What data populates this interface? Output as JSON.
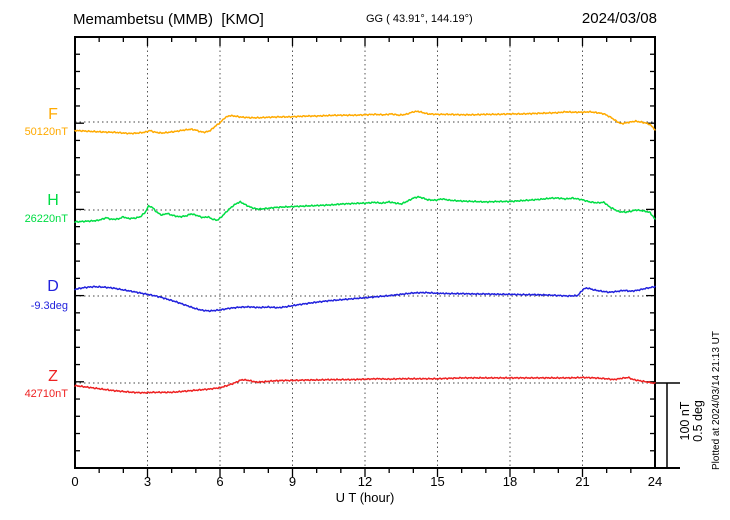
{
  "header": {
    "station_title": "Memambetsu (MMB)  [KMO]",
    "coords": "GG ( 43.91°, 144.19°)",
    "date": "2024/03/08"
  },
  "side": {
    "scale_label_line1": "100 nT",
    "scale_label_line2": "0.5 deg",
    "plotted_at": "Plotted at 2024/03/14 21:13 UT"
  },
  "chart_data": {
    "type": "line",
    "title": "Memambetsu (MMB) [KMO] magnetogram for 2024/03/08",
    "xlabel": "U T (hour)",
    "xlim": [
      0,
      24
    ],
    "x_ticks_major": [
      0,
      3,
      6,
      9,
      12,
      15,
      18,
      21,
      24
    ],
    "x_minor_step_hours": 1,
    "grid": "dotted vertical gridlines every 3 hours; dotted horizontal baseline per trace",
    "legend_position": "left margin labels",
    "scale_bar": {
      "nT": 100,
      "deg": 0.5
    },
    "series": [
      {
        "name": "F",
        "unit": "nT",
        "baseline_value": 50120,
        "baseline_label": "50120nT",
        "color": "#ffaa00",
        "points": [
          [
            0,
            -10
          ],
          [
            0.3,
            -10.5
          ],
          [
            0.6,
            -11
          ],
          [
            1,
            -11.5
          ],
          [
            1.3,
            -12
          ],
          [
            1.6,
            -12
          ],
          [
            2,
            -13
          ],
          [
            2.3,
            -13.5
          ],
          [
            2.6,
            -13
          ],
          [
            2.9,
            -12
          ],
          [
            3.1,
            -10
          ],
          [
            3.3,
            -12
          ],
          [
            3.6,
            -13
          ],
          [
            3.9,
            -12
          ],
          [
            4.2,
            -11
          ],
          [
            4.5,
            -9.5
          ],
          [
            4.8,
            -8.5
          ],
          [
            5,
            -9.5
          ],
          [
            5.2,
            -11.5
          ],
          [
            5.4,
            -12
          ],
          [
            5.6,
            -10
          ],
          [
            5.8,
            -5
          ],
          [
            6,
            -1
          ],
          [
            6.2,
            5
          ],
          [
            6.4,
            7.5
          ],
          [
            6.6,
            7
          ],
          [
            6.8,
            6
          ],
          [
            7,
            5.5
          ],
          [
            7.3,
            5
          ],
          [
            7.6,
            5
          ],
          [
            8,
            5.5
          ],
          [
            8.4,
            6
          ],
          [
            8.8,
            6
          ],
          [
            9.2,
            6.5
          ],
          [
            9.6,
            7
          ],
          [
            10,
            7
          ],
          [
            10.4,
            7.5
          ],
          [
            10.8,
            8
          ],
          [
            11.2,
            8
          ],
          [
            11.6,
            8
          ],
          [
            12,
            8.5
          ],
          [
            12.4,
            9
          ],
          [
            12.8,
            8.5
          ],
          [
            13.1,
            9.5
          ],
          [
            13.4,
            8
          ],
          [
            13.7,
            9
          ],
          [
            14,
            12
          ],
          [
            14.2,
            12.5
          ],
          [
            14.4,
            11
          ],
          [
            14.6,
            9.5
          ],
          [
            15,
            9
          ],
          [
            15.5,
            9
          ],
          [
            16,
            8.5
          ],
          [
            16.5,
            8.5
          ],
          [
            17,
            9
          ],
          [
            17.5,
            9
          ],
          [
            18,
            9.5
          ],
          [
            18.5,
            9.5
          ],
          [
            19,
            10
          ],
          [
            19.5,
            10.5
          ],
          [
            20,
            11
          ],
          [
            20.3,
            12
          ],
          [
            20.6,
            11.5
          ],
          [
            21,
            11.5
          ],
          [
            21.3,
            12
          ],
          [
            21.6,
            11
          ],
          [
            21.9,
            9.5
          ],
          [
            22.2,
            5
          ],
          [
            22.4,
            1
          ],
          [
            22.6,
            -2
          ],
          [
            22.8,
            -1
          ],
          [
            23,
            0
          ],
          [
            23.2,
            1
          ],
          [
            23.4,
            0
          ],
          [
            23.6,
            -1
          ],
          [
            23.8,
            -3
          ],
          [
            24,
            -9
          ]
        ]
      },
      {
        "name": "H",
        "unit": "nT",
        "baseline_value": 26220,
        "baseline_label": "26220nT",
        "color": "#00dd44",
        "points": [
          [
            0,
            -14
          ],
          [
            0.3,
            -13.5
          ],
          [
            0.6,
            -13
          ],
          [
            0.9,
            -12.5
          ],
          [
            1.1,
            -11
          ],
          [
            1.3,
            -9
          ],
          [
            1.5,
            -11
          ],
          [
            1.8,
            -10.5
          ],
          [
            2,
            -8
          ],
          [
            2.2,
            -10
          ],
          [
            2.5,
            -9.5
          ],
          [
            2.7,
            -8
          ],
          [
            2.9,
            -3
          ],
          [
            3.05,
            5
          ],
          [
            3.2,
            3
          ],
          [
            3.4,
            -3
          ],
          [
            3.6,
            -6
          ],
          [
            3.8,
            -4
          ],
          [
            4,
            -6
          ],
          [
            4.3,
            -8
          ],
          [
            4.6,
            -7
          ],
          [
            4.8,
            -4.5
          ],
          [
            5,
            -6
          ],
          [
            5.3,
            -9
          ],
          [
            5.5,
            -8
          ],
          [
            5.7,
            -11
          ],
          [
            5.9,
            -12
          ],
          [
            6.1,
            -7
          ],
          [
            6.3,
            -1
          ],
          [
            6.5,
            4
          ],
          [
            6.7,
            8
          ],
          [
            6.85,
            9.5
          ],
          [
            7,
            7
          ],
          [
            7.2,
            4
          ],
          [
            7.4,
            2
          ],
          [
            7.6,
            1
          ],
          [
            7.8,
            1.5
          ],
          [
            8,
            2
          ],
          [
            8.3,
            3
          ],
          [
            8.6,
            3.5
          ],
          [
            9,
            4
          ],
          [
            9.4,
            4.5
          ],
          [
            9.8,
            5
          ],
          [
            10.2,
            5.5
          ],
          [
            10.6,
            6
          ],
          [
            11,
            7
          ],
          [
            11.4,
            7.5
          ],
          [
            11.8,
            8
          ],
          [
            12,
            8
          ],
          [
            12.4,
            9
          ],
          [
            12.7,
            8
          ],
          [
            13,
            9.5
          ],
          [
            13.3,
            8
          ],
          [
            13.5,
            7
          ],
          [
            13.8,
            11
          ],
          [
            14,
            14
          ],
          [
            14.2,
            15.5
          ],
          [
            14.4,
            14
          ],
          [
            14.6,
            12
          ],
          [
            14.9,
            11.5
          ],
          [
            15.2,
            13
          ],
          [
            15.5,
            11.5
          ],
          [
            16,
            10.5
          ],
          [
            16.5,
            10
          ],
          [
            17,
            9.5
          ],
          [
            17.5,
            10
          ],
          [
            18,
            10
          ],
          [
            18.5,
            11
          ],
          [
            19,
            12
          ],
          [
            19.4,
            13
          ],
          [
            19.7,
            14
          ],
          [
            20,
            14
          ],
          [
            20.3,
            13
          ],
          [
            20.6,
            14
          ],
          [
            21,
            12
          ],
          [
            21.3,
            9.5
          ],
          [
            21.6,
            8.5
          ],
          [
            21.9,
            9
          ],
          [
            22.1,
            4
          ],
          [
            22.3,
            1
          ],
          [
            22.5,
            -2
          ],
          [
            22.8,
            -2.5
          ],
          [
            23,
            -1.5
          ],
          [
            23.2,
            0
          ],
          [
            23.4,
            -0.5
          ],
          [
            23.6,
            -1.5
          ],
          [
            23.8,
            -3
          ],
          [
            24,
            -11
          ]
        ]
      },
      {
        "name": "D",
        "unit": "deg",
        "baseline_value": -9.3,
        "baseline_label": "-9.3deg",
        "color": "#2222dd",
        "points": [
          [
            0,
            0.04
          ],
          [
            0.4,
            0.05
          ],
          [
            0.8,
            0.055
          ],
          [
            1.2,
            0.052
          ],
          [
            1.6,
            0.046
          ],
          [
            2,
            0.036
          ],
          [
            2.4,
            0.026
          ],
          [
            2.8,
            0.015
          ],
          [
            3.2,
            0.004
          ],
          [
            3.5,
            -0.005
          ],
          [
            3.8,
            -0.018
          ],
          [
            4.2,
            -0.035
          ],
          [
            4.6,
            -0.055
          ],
          [
            5,
            -0.075
          ],
          [
            5.3,
            -0.085
          ],
          [
            5.6,
            -0.088
          ],
          [
            6,
            -0.082
          ],
          [
            6.4,
            -0.072
          ],
          [
            6.8,
            -0.066
          ],
          [
            7.2,
            -0.064
          ],
          [
            7.6,
            -0.068
          ],
          [
            8,
            -0.065
          ],
          [
            8.4,
            -0.069
          ],
          [
            8.8,
            -0.062
          ],
          [
            9.2,
            -0.052
          ],
          [
            9.6,
            -0.044
          ],
          [
            10,
            -0.036
          ],
          [
            10.5,
            -0.028
          ],
          [
            11,
            -0.022
          ],
          [
            11.5,
            -0.016
          ],
          [
            12,
            -0.01
          ],
          [
            12.5,
            -0.004
          ],
          [
            13,
            0.002
          ],
          [
            13.5,
            0.01
          ],
          [
            14,
            0.018
          ],
          [
            14.5,
            0.02
          ],
          [
            15,
            0.016
          ],
          [
            15.5,
            0.014
          ],
          [
            16,
            0.014
          ],
          [
            16.5,
            0.012
          ],
          [
            17,
            0.012
          ],
          [
            17.5,
            0.01
          ],
          [
            18,
            0.01
          ],
          [
            18.5,
            0.008
          ],
          [
            19,
            0.008
          ],
          [
            19.5,
            0.006
          ],
          [
            20,
            0.003
          ],
          [
            20.4,
            0
          ],
          [
            20.8,
            0.003
          ],
          [
            21.05,
            0.042
          ],
          [
            21.2,
            0.047
          ],
          [
            21.5,
            0.035
          ],
          [
            21.8,
            0.028
          ],
          [
            22.1,
            0.022
          ],
          [
            22.4,
            0.026
          ],
          [
            22.7,
            0.033
          ],
          [
            23,
            0.028
          ],
          [
            23.3,
            0.034
          ],
          [
            23.6,
            0.044
          ],
          [
            24,
            0.055
          ]
        ]
      },
      {
        "name": "Z",
        "unit": "nT",
        "baseline_value": 42710,
        "baseline_label": "42710nT",
        "color": "#ee2222",
        "points": [
          [
            0,
            -3
          ],
          [
            0.4,
            -4.5
          ],
          [
            0.8,
            -6
          ],
          [
            1.2,
            -7.5
          ],
          [
            1.6,
            -9
          ],
          [
            2,
            -10
          ],
          [
            2.4,
            -11
          ],
          [
            2.8,
            -11.5
          ],
          [
            3.2,
            -11
          ],
          [
            3.6,
            -11
          ],
          [
            4,
            -11
          ],
          [
            4.4,
            -10
          ],
          [
            4.8,
            -9
          ],
          [
            5.2,
            -8
          ],
          [
            5.6,
            -7
          ],
          [
            6,
            -5.5
          ],
          [
            6.3,
            -3
          ],
          [
            6.6,
            0
          ],
          [
            6.9,
            4
          ],
          [
            7.2,
            3
          ],
          [
            7.5,
            1
          ],
          [
            7.8,
            1.5
          ],
          [
            8.2,
            2.5
          ],
          [
            8.6,
            3
          ],
          [
            9,
            3
          ],
          [
            9.5,
            3.5
          ],
          [
            10,
            3.5
          ],
          [
            10.5,
            4
          ],
          [
            11,
            4
          ],
          [
            11.5,
            4
          ],
          [
            12,
            4.5
          ],
          [
            12.5,
            5
          ],
          [
            13,
            4.5
          ],
          [
            13.5,
            5
          ],
          [
            14,
            5
          ],
          [
            14.5,
            5
          ],
          [
            15,
            5
          ],
          [
            15.5,
            5.5
          ],
          [
            16,
            6
          ],
          [
            16.5,
            6
          ],
          [
            17,
            6
          ],
          [
            17.5,
            6
          ],
          [
            18,
            6
          ],
          [
            18.5,
            6
          ],
          [
            19,
            6
          ],
          [
            19.5,
            6
          ],
          [
            20,
            6
          ],
          [
            20.5,
            6
          ],
          [
            21,
            6.5
          ],
          [
            21.5,
            6
          ],
          [
            22,
            5
          ],
          [
            22.3,
            4
          ],
          [
            22.6,
            5.5
          ],
          [
            22.9,
            6.5
          ],
          [
            23.1,
            4
          ],
          [
            23.4,
            2.5
          ],
          [
            23.7,
            1
          ],
          [
            24,
            -0.5
          ]
        ]
      }
    ]
  }
}
